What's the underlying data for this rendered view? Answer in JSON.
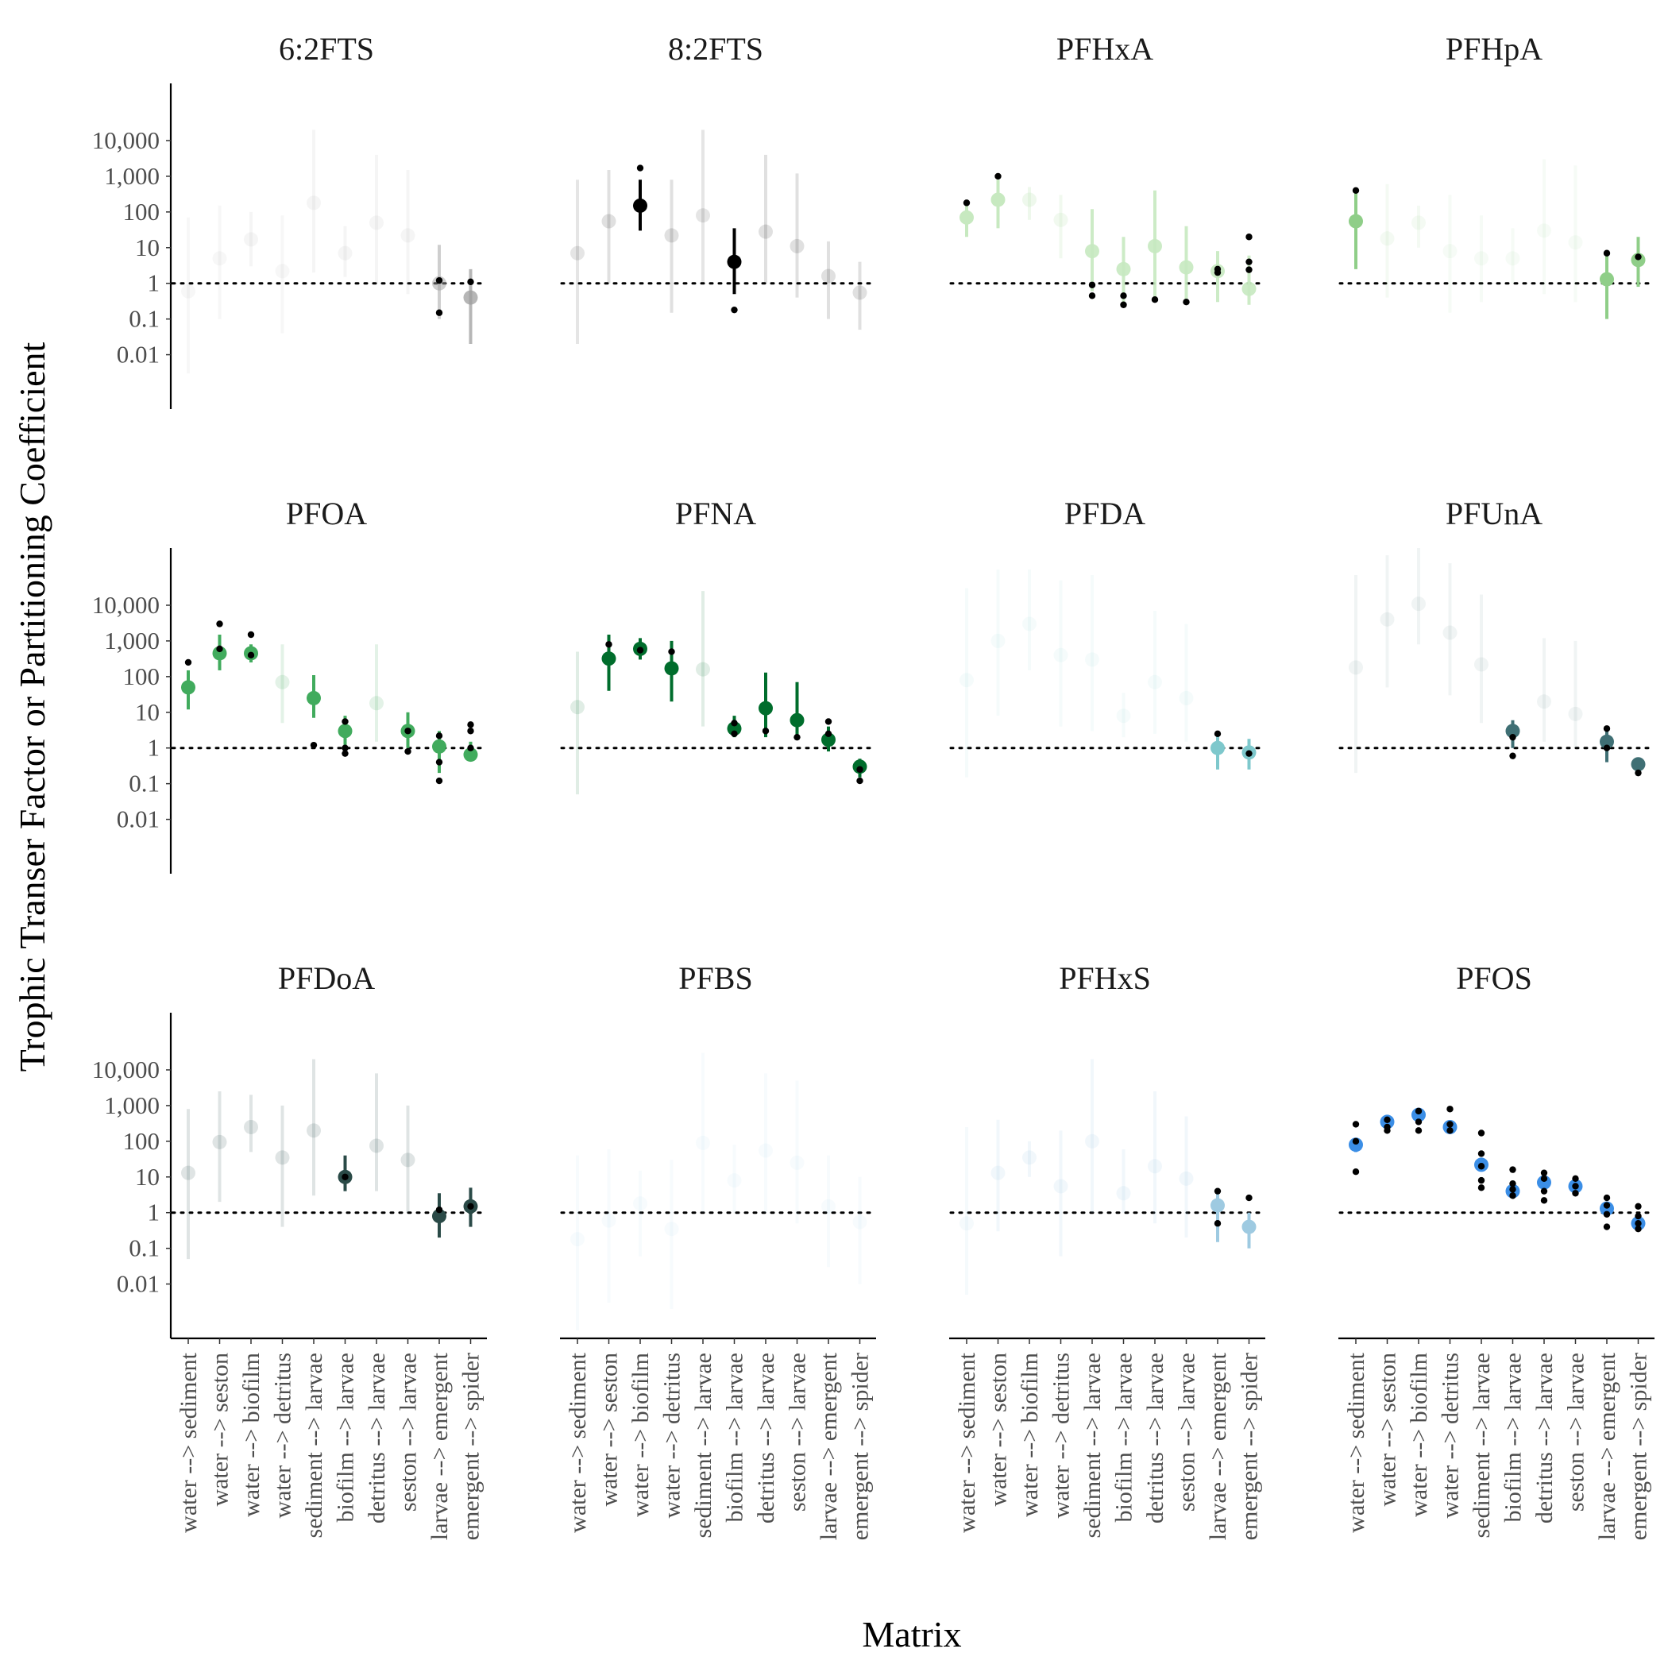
{
  "chart_data": {
    "type": "scatter",
    "ylabel": "Trophic Transer Factor or Partitioning Coefficient",
    "xlabel": "Matrix",
    "y_scale": "log10",
    "ylim": [
      0.0003,
      400000
    ],
    "y_ticks": [
      0.01,
      0.1,
      1,
      10,
      100,
      1000,
      10000
    ],
    "y_tick_labels": [
      "0.01",
      "0.1",
      "1",
      "10",
      "100",
      "1,000",
      "10,000"
    ],
    "reference_line": {
      "y": 1,
      "style": "dotted"
    },
    "grid": false,
    "categories": [
      "water --> sediment",
      "water --> seston",
      "water --> biofilm",
      "water --> detritus",
      "sediment --> larvae",
      "biofilm --> larvae",
      "detritus --> larvae",
      "seston --> larvae",
      "larvae --> emergent",
      "emergent --> spider"
    ],
    "panels": [
      {
        "title": "6:2FTS",
        "color": "#9e9e9e",
        "points": [
          {
            "y": 0.6,
            "lo": 0.003,
            "hi": 70,
            "alpha": 0.08
          },
          {
            "y": 5,
            "lo": 0.1,
            "hi": 150,
            "alpha": 0.08
          },
          {
            "y": 17,
            "lo": 3,
            "hi": 100,
            "alpha": 0.1
          },
          {
            "y": 2.2,
            "lo": 0.04,
            "hi": 80,
            "alpha": 0.08
          },
          {
            "y": 180,
            "lo": 2,
            "hi": 20000,
            "alpha": 0.1
          },
          {
            "y": 7,
            "lo": 1.5,
            "hi": 40,
            "alpha": 0.1
          },
          {
            "y": 50,
            "lo": 1,
            "hi": 4000,
            "alpha": 0.1
          },
          {
            "y": 22,
            "lo": 0.5,
            "hi": 1500,
            "alpha": 0.1
          },
          {
            "y": 1.0,
            "lo": 0.1,
            "hi": 12,
            "alpha": 0.5,
            "obs": [
              0.15,
              1.2
            ]
          },
          {
            "y": 0.4,
            "lo": 0.02,
            "hi": 2.5,
            "alpha": 0.75,
            "obs": [
              1.1
            ]
          }
        ]
      },
      {
        "title": "8:2FTS",
        "color": "#000000",
        "points": [
          {
            "y": 7,
            "lo": 0.02,
            "hi": 800,
            "alpha": 0.1
          },
          {
            "y": 55,
            "lo": 1,
            "hi": 1500,
            "alpha": 0.12
          },
          {
            "y": 150,
            "lo": 30,
            "hi": 800,
            "alpha": 1,
            "obs": [
              1700,
              150
            ]
          },
          {
            "y": 22,
            "lo": 0.15,
            "hi": 800,
            "alpha": 0.12
          },
          {
            "y": 80,
            "lo": 1,
            "hi": 20000,
            "alpha": 0.1
          },
          {
            "y": 4,
            "lo": 0.5,
            "hi": 35,
            "alpha": 1,
            "obs": [
              0.18
            ]
          },
          {
            "y": 28,
            "lo": 1,
            "hi": 4000,
            "alpha": 0.12
          },
          {
            "y": 11,
            "lo": 0.4,
            "hi": 1200,
            "alpha": 0.12
          },
          {
            "y": 1.6,
            "lo": 0.1,
            "hi": 15,
            "alpha": 0.12
          },
          {
            "y": 0.55,
            "lo": 0.05,
            "hi": 4,
            "alpha": 0.12
          }
        ]
      },
      {
        "title": "PFHxA",
        "color": "#c7e9c0",
        "points": [
          {
            "y": 70,
            "lo": 20,
            "hi": 200,
            "alpha": 1,
            "obs": [
              180
            ]
          },
          {
            "y": 220,
            "lo": 35,
            "hi": 800,
            "alpha": 1,
            "obs": [
              1000
            ]
          },
          {
            "y": 220,
            "lo": 60,
            "hi": 500,
            "alpha": 0.3
          },
          {
            "y": 60,
            "lo": 5,
            "hi": 300,
            "alpha": 0.25
          },
          {
            "y": 8,
            "lo": 0.6,
            "hi": 120,
            "alpha": 0.9,
            "obs": [
              0.9,
              0.45
            ]
          },
          {
            "y": 2.5,
            "lo": 0.3,
            "hi": 20,
            "alpha": 0.9,
            "obs": [
              0.45,
              0.25
            ]
          },
          {
            "y": 11,
            "lo": 0.4,
            "hi": 400,
            "alpha": 0.9,
            "obs": [
              0.35
            ]
          },
          {
            "y": 2.8,
            "lo": 0.3,
            "hi": 40,
            "alpha": 0.9,
            "obs": [
              0.3
            ]
          },
          {
            "y": 2.2,
            "lo": 0.3,
            "hi": 8,
            "alpha": 0.9,
            "obs": [
              2.0,
              2.5
            ]
          },
          {
            "y": 0.7,
            "lo": 0.25,
            "hi": 6,
            "alpha": 0.9,
            "obs": [
              20,
              4,
              2.4
            ]
          }
        ]
      },
      {
        "title": "PFHpA",
        "color": "#8fce88",
        "points": [
          {
            "y": 55,
            "lo": 2.5,
            "hi": 400,
            "alpha": 1,
            "obs": [
              400
            ]
          },
          {
            "y": 18,
            "lo": 0.4,
            "hi": 600,
            "alpha": 0.1
          },
          {
            "y": 50,
            "lo": 10,
            "hi": 150,
            "alpha": 0.1
          },
          {
            "y": 8,
            "lo": 0.15,
            "hi": 300,
            "alpha": 0.08
          },
          {
            "y": 5,
            "lo": 0.3,
            "hi": 80,
            "alpha": 0.08
          },
          {
            "y": 5,
            "lo": 1,
            "hi": 35,
            "alpha": 0.08
          },
          {
            "y": 30,
            "lo": 0.5,
            "hi": 3000,
            "alpha": 0.08
          },
          {
            "y": 14,
            "lo": 0.3,
            "hi": 2000,
            "alpha": 0.08
          },
          {
            "y": 1.3,
            "lo": 0.1,
            "hi": 7,
            "alpha": 1,
            "obs": [
              7
            ]
          },
          {
            "y": 4.5,
            "lo": 0.8,
            "hi": 20,
            "alpha": 1,
            "obs": [
              5.5
            ]
          }
        ]
      },
      {
        "title": "PFOA",
        "color": "#41ab5d",
        "points": [
          {
            "y": 50,
            "lo": 12,
            "hi": 150,
            "alpha": 1,
            "obs": [
              250
            ]
          },
          {
            "y": 450,
            "lo": 150,
            "hi": 1500,
            "alpha": 1,
            "obs": [
              3000,
              600
            ]
          },
          {
            "y": 450,
            "lo": 250,
            "hi": 800,
            "alpha": 1,
            "obs": [
              1500,
              400
            ]
          },
          {
            "y": 70,
            "lo": 5,
            "hi": 800,
            "alpha": 0.15
          },
          {
            "y": 25,
            "lo": 7,
            "hi": 110,
            "alpha": 1,
            "obs": [
              1.2
            ]
          },
          {
            "y": 3,
            "lo": 1,
            "hi": 8,
            "alpha": 1,
            "obs": [
              5.5,
              1.0,
              0.7
            ]
          },
          {
            "y": 18,
            "lo": 1.5,
            "hi": 800,
            "alpha": 0.15
          },
          {
            "y": 3,
            "lo": 1,
            "hi": 10,
            "alpha": 1,
            "obs": [
              3,
              0.8
            ]
          },
          {
            "y": 1.1,
            "lo": 0.2,
            "hi": 3,
            "alpha": 1,
            "obs": [
              2.2,
              0.4,
              0.12
            ]
          },
          {
            "y": 0.65,
            "lo": 0.5,
            "hi": 1.5,
            "alpha": 1,
            "obs": [
              4.5,
              3.0,
              1.0
            ]
          }
        ]
      },
      {
        "title": "PFNA",
        "color": "#006d2c",
        "points": [
          {
            "y": 14,
            "lo": 0.05,
            "hi": 500,
            "alpha": 0.12
          },
          {
            "y": 320,
            "lo": 40,
            "hi": 1500,
            "alpha": 1,
            "obs": [
              800
            ]
          },
          {
            "y": 600,
            "lo": 300,
            "hi": 1200,
            "alpha": 1,
            "obs": [
              550
            ]
          },
          {
            "y": 170,
            "lo": 20,
            "hi": 1000,
            "alpha": 1,
            "obs": [
              500
            ]
          },
          {
            "y": 160,
            "lo": 4,
            "hi": 25000,
            "alpha": 0.12
          },
          {
            "y": 3.5,
            "lo": 2,
            "hi": 8,
            "alpha": 1,
            "obs": [
              5,
              2.5
            ]
          },
          {
            "y": 13,
            "lo": 2,
            "hi": 130,
            "alpha": 1,
            "obs": [
              3
            ]
          },
          {
            "y": 6,
            "lo": 2,
            "hi": 70,
            "alpha": 1,
            "obs": [
              2
            ]
          },
          {
            "y": 1.7,
            "lo": 0.8,
            "hi": 4,
            "alpha": 1,
            "obs": [
              5.5,
              2.5
            ]
          },
          {
            "y": 0.3,
            "lo": 0.15,
            "hi": 0.5,
            "alpha": 1,
            "obs": [
              0.25,
              0.12
            ]
          }
        ]
      },
      {
        "title": "PFDA",
        "color": "#7ec8cc",
        "points": [
          {
            "y": 80,
            "lo": 0.15,
            "hi": 30000,
            "alpha": 0.08
          },
          {
            "y": 1000,
            "lo": 8,
            "hi": 100000,
            "alpha": 0.08
          },
          {
            "y": 3000,
            "lo": 150,
            "hi": 100000,
            "alpha": 0.08
          },
          {
            "y": 400,
            "lo": 4,
            "hi": 50000,
            "alpha": 0.08
          },
          {
            "y": 300,
            "lo": 3,
            "hi": 70000,
            "alpha": 0.08
          },
          {
            "y": 8,
            "lo": 2,
            "hi": 35,
            "alpha": 0.08
          },
          {
            "y": 70,
            "lo": 2.5,
            "hi": 7000,
            "alpha": 0.08
          },
          {
            "y": 25,
            "lo": 1.5,
            "hi": 3000,
            "alpha": 0.08
          },
          {
            "y": 1.0,
            "lo": 0.25,
            "hi": 2.5,
            "alpha": 1,
            "obs": [
              2.5
            ]
          },
          {
            "y": 0.75,
            "lo": 0.25,
            "hi": 1.8,
            "alpha": 1,
            "obs": [
              0.7
            ]
          }
        ]
      },
      {
        "title": "PFUnA",
        "color": "#3f6f74",
        "points": [
          {
            "y": 180,
            "lo": 0.2,
            "hi": 70000,
            "alpha": 0.08
          },
          {
            "y": 4000,
            "lo": 50,
            "hi": 250000,
            "alpha": 0.08
          },
          {
            "y": 11000,
            "lo": 800,
            "hi": 400000,
            "alpha": 0.08
          },
          {
            "y": 1700,
            "lo": 30,
            "hi": 150000,
            "alpha": 0.08
          },
          {
            "y": 220,
            "lo": 5,
            "hi": 20000,
            "alpha": 0.08
          },
          {
            "y": 3,
            "lo": 1,
            "hi": 6,
            "alpha": 1,
            "obs": [
              2,
              0.6
            ]
          },
          {
            "y": 20,
            "lo": 1.5,
            "hi": 1200,
            "alpha": 0.08
          },
          {
            "y": 9,
            "lo": 1,
            "hi": 1000,
            "alpha": 0.08
          },
          {
            "y": 1.5,
            "lo": 0.4,
            "hi": 3.5,
            "alpha": 1,
            "obs": [
              3.5,
              1.0
            ]
          },
          {
            "y": 0.35,
            "lo": 0.2,
            "hi": 0.5,
            "alpha": 1,
            "obs": [
              0.2
            ]
          }
        ]
      },
      {
        "title": "PFDoA",
        "color": "#2a4a47",
        "points": [
          {
            "y": 13,
            "lo": 0.05,
            "hi": 800,
            "alpha": 0.15
          },
          {
            "y": 95,
            "lo": 2,
            "hi": 2500,
            "alpha": 0.15
          },
          {
            "y": 250,
            "lo": 50,
            "hi": 2000,
            "alpha": 0.15
          },
          {
            "y": 35,
            "lo": 0.4,
            "hi": 1000,
            "alpha": 0.15
          },
          {
            "y": 200,
            "lo": 3,
            "hi": 20000,
            "alpha": 0.15
          },
          {
            "y": 10,
            "lo": 4,
            "hi": 40,
            "alpha": 1,
            "obs": [
              10
            ]
          },
          {
            "y": 75,
            "lo": 4,
            "hi": 8000,
            "alpha": 0.15
          },
          {
            "y": 30,
            "lo": 1,
            "hi": 1000,
            "alpha": 0.15
          },
          {
            "y": 0.8,
            "lo": 0.2,
            "hi": 3.5,
            "alpha": 1,
            "obs": [
              1.2
            ]
          },
          {
            "y": 1.5,
            "lo": 0.4,
            "hi": 5,
            "alpha": 1,
            "obs": [
              1.5
            ]
          }
        ]
      },
      {
        "title": "PFBS",
        "color": "#9ecae1",
        "points": [
          {
            "y": 0.18,
            "lo": 0.0005,
            "hi": 40,
            "alpha": 0.08
          },
          {
            "y": 0.6,
            "lo": 0.003,
            "hi": 60,
            "alpha": 0.08
          },
          {
            "y": 1.8,
            "lo": 0.06,
            "hi": 15,
            "alpha": 0.08
          },
          {
            "y": 0.35,
            "lo": 0.002,
            "hi": 30,
            "alpha": 0.08
          },
          {
            "y": 90,
            "lo": 1,
            "hi": 30000,
            "alpha": 0.08
          },
          {
            "y": 8,
            "lo": 1,
            "hi": 80,
            "alpha": 0.08
          },
          {
            "y": 55,
            "lo": 1,
            "hi": 8000,
            "alpha": 0.08
          },
          {
            "y": 25,
            "lo": 0.5,
            "hi": 5000,
            "alpha": 0.08
          },
          {
            "y": 1.5,
            "lo": 0.03,
            "hi": 40,
            "alpha": 0.08
          },
          {
            "y": 0.55,
            "lo": 0.01,
            "hi": 10,
            "alpha": 0.08
          }
        ]
      },
      {
        "title": "PFHxS",
        "color": "#9ecae1",
        "points": [
          {
            "y": 0.5,
            "lo": 0.005,
            "hi": 250,
            "alpha": 0.1
          },
          {
            "y": 13,
            "lo": 0.3,
            "hi": 400,
            "alpha": 0.15
          },
          {
            "y": 35,
            "lo": 10,
            "hi": 100,
            "alpha": 0.15
          },
          {
            "y": 5.5,
            "lo": 0.06,
            "hi": 200,
            "alpha": 0.15
          },
          {
            "y": 100,
            "lo": 1,
            "hi": 20000,
            "alpha": 0.15
          },
          {
            "y": 3.5,
            "lo": 1,
            "hi": 60,
            "alpha": 0.15
          },
          {
            "y": 20,
            "lo": 0.5,
            "hi": 2500,
            "alpha": 0.15
          },
          {
            "y": 9,
            "lo": 0.2,
            "hi": 500,
            "alpha": 0.15
          },
          {
            "y": 1.6,
            "lo": 0.15,
            "hi": 4,
            "alpha": 1,
            "obs": [
              4,
              0.5
            ]
          },
          {
            "y": 0.4,
            "lo": 0.1,
            "hi": 1,
            "alpha": 1,
            "obs": [
              2.6
            ]
          }
        ]
      },
      {
        "title": "PFOS",
        "color": "#3b8ee6",
        "points": [
          {
            "y": 80,
            "lo": 50,
            "hi": 120,
            "alpha": 1,
            "obs": [
              300,
              100,
              14
            ]
          },
          {
            "y": 350,
            "lo": 250,
            "hi": 500,
            "alpha": 1,
            "obs": [
              400,
              250,
              200
            ]
          },
          {
            "y": 550,
            "lo": 400,
            "hi": 700,
            "alpha": 1,
            "obs": [
              700,
              350,
              200
            ]
          },
          {
            "y": 250,
            "lo": 180,
            "hi": 350,
            "alpha": 1,
            "obs": [
              800,
              300,
              200
            ]
          },
          {
            "y": 22,
            "lo": 15,
            "hi": 30,
            "alpha": 1,
            "obs": [
              170,
              45,
              20,
              8,
              5
            ]
          },
          {
            "y": 4,
            "lo": 3,
            "hi": 5.5,
            "alpha": 1,
            "obs": [
              16,
              6.5,
              4.5,
              3
            ]
          },
          {
            "y": 7,
            "lo": 5,
            "hi": 10,
            "alpha": 1,
            "obs": [
              13,
              9,
              4,
              2.2
            ]
          },
          {
            "y": 5.5,
            "lo": 4,
            "hi": 7,
            "alpha": 1,
            "obs": [
              9,
              5.5,
              3.5
            ]
          },
          {
            "y": 1.3,
            "lo": 0.9,
            "hi": 1.8,
            "alpha": 1,
            "obs": [
              2.6,
              1.6,
              0.9,
              0.4
            ]
          },
          {
            "y": 0.5,
            "lo": 0.35,
            "hi": 0.7,
            "alpha": 1,
            "obs": [
              1.5,
              0.8,
              0.5,
              0.35
            ]
          }
        ]
      }
    ]
  }
}
